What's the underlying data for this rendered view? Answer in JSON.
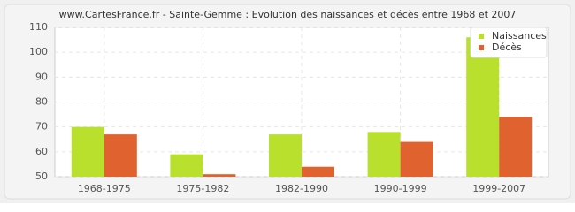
{
  "chart_data": {
    "type": "bar",
    "title": "www.CartesFrance.fr - Sainte-Gemme : Evolution des naissances et décès entre 1968 et 2007",
    "categories": [
      "1968-1975",
      "1975-1982",
      "1982-1990",
      "1990-1999",
      "1999-2007"
    ],
    "series": [
      {
        "name": "Naissances",
        "color": "#b8e02c",
        "values": [
          70,
          59,
          67,
          68,
          106
        ]
      },
      {
        "name": "Décès",
        "color": "#e0622e",
        "values": [
          67,
          51,
          54,
          64,
          74
        ]
      }
    ],
    "ylim": [
      50,
      110
    ],
    "yticks": [
      50,
      60,
      70,
      80,
      90,
      100,
      110
    ],
    "grid": true,
    "legend": "top-right"
  }
}
